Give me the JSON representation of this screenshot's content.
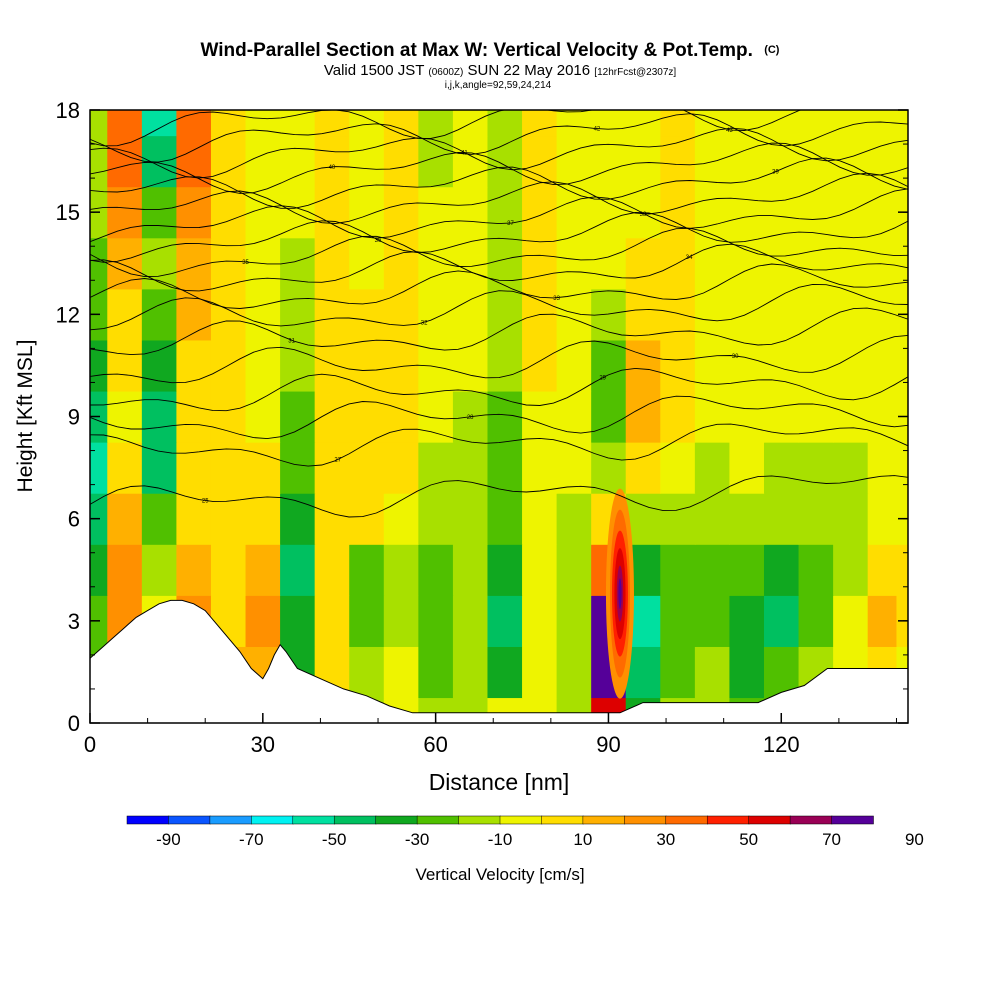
{
  "title": {
    "main": "Wind-Parallel Section at Max W: Vertical Velocity & Pot.Temp.",
    "main_unit": "(C)",
    "valid_prefix": "Valid 1500 JST",
    "valid_z": "(0600Z)",
    "valid_date": "SUN 22 May 2016",
    "valid_fcst": "[12hrFcst@2307z]",
    "indices": "i,j,k,angle=92,59,24,214"
  },
  "colorbar": {
    "label": "Vertical Velocity [cm/s]",
    "tick_labels": [
      "-90",
      "-70",
      "-50",
      "-30",
      "-10",
      "10",
      "30",
      "50",
      "70",
      "90"
    ],
    "colors": [
      "#0000ff",
      "#0a55ff",
      "#1a9cff",
      "#00f2f2",
      "#00e0a0",
      "#00c060",
      "#10a820",
      "#50c000",
      "#a8e000",
      "#eef400",
      "#ffdd00",
      "#ffb000",
      "#ff9000",
      "#ff6a00",
      "#ff2000",
      "#dd0000",
      "#990055",
      "#550099"
    ]
  },
  "chart_data": {
    "type": "heatmap",
    "title": "Wind-Parallel Section at Max W: Vertical Velocity & Pot.Temp. (C)",
    "xlabel": "Distance [nm]",
    "ylabel": "Height [Kft MSL]",
    "xlim": [
      0,
      142
    ],
    "ylim": [
      0,
      18
    ],
    "x_ticks": [
      0,
      30,
      60,
      90,
      120
    ],
    "y_ticks": [
      0,
      3,
      6,
      9,
      12,
      15,
      18
    ],
    "cell_values_cm_s": {
      "x": [
        0,
        6,
        12,
        18,
        24,
        30,
        36,
        42,
        48,
        54,
        60,
        66,
        72,
        78,
        84,
        90,
        96,
        102,
        108,
        114,
        120,
        126,
        132,
        138,
        142
      ],
      "y": [
        0,
        1.5,
        3,
        4.5,
        6,
        7.5,
        9,
        10.5,
        12,
        13.5,
        15,
        16.5,
        18
      ],
      "w": [
        [
          -10,
          10,
          20,
          30,
          10,
          -10,
          10,
          -10,
          -10,
          0,
          -10,
          -10,
          0,
          0,
          -10,
          60,
          -30,
          -10,
          -10,
          -20,
          -20,
          -10,
          0,
          0,
          0
        ],
        [
          -20,
          30,
          10,
          40,
          20,
          20,
          -30,
          10,
          -10,
          0,
          -20,
          -10,
          -30,
          0,
          -10,
          90,
          -40,
          -20,
          -10,
          -30,
          -20,
          -10,
          0,
          10,
          0
        ],
        [
          -20,
          30,
          0,
          30,
          10,
          30,
          -30,
          10,
          -20,
          -10,
          -20,
          -10,
          -40,
          0,
          -10,
          80,
          -50,
          -20,
          -20,
          -30,
          -40,
          -20,
          0,
          20,
          10
        ],
        [
          -30,
          30,
          -10,
          20,
          10,
          20,
          -40,
          10,
          -20,
          -10,
          -20,
          -10,
          -30,
          0,
          -10,
          40,
          -30,
          -20,
          -20,
          -20,
          -30,
          -20,
          -10,
          10,
          10
        ],
        [
          -40,
          20,
          -20,
          10,
          10,
          10,
          -30,
          10,
          10,
          0,
          -10,
          -10,
          -20,
          0,
          -10,
          10,
          -10,
          -10,
          -10,
          -10,
          -10,
          -10,
          -10,
          0,
          0
        ],
        [
          -50,
          10,
          -40,
          10,
          10,
          10,
          -20,
          10,
          10,
          10,
          -10,
          -10,
          -20,
          0,
          0,
          -10,
          10,
          0,
          -10,
          0,
          -10,
          -10,
          -10,
          0,
          0
        ],
        [
          -40,
          0,
          -40,
          10,
          10,
          0,
          -20,
          10,
          10,
          10,
          0,
          -10,
          -20,
          0,
          0,
          -20,
          20,
          10,
          0,
          0,
          0,
          0,
          0,
          0,
          0
        ],
        [
          -30,
          10,
          -30,
          10,
          10,
          0,
          -10,
          10,
          10,
          10,
          0,
          0,
          -10,
          10,
          0,
          -20,
          20,
          10,
          0,
          0,
          0,
          0,
          0,
          0,
          0
        ],
        [
          -20,
          10,
          -20,
          20,
          10,
          0,
          -10,
          10,
          10,
          10,
          0,
          0,
          -10,
          10,
          0,
          -10,
          10,
          10,
          0,
          0,
          0,
          0,
          0,
          0,
          0
        ],
        [
          -20,
          20,
          -10,
          20,
          10,
          0,
          -10,
          10,
          0,
          10,
          0,
          0,
          -10,
          10,
          0,
          0,
          10,
          10,
          0,
          0,
          0,
          0,
          0,
          0,
          0
        ],
        [
          -10,
          30,
          -20,
          30,
          10,
          0,
          0,
          10,
          0,
          10,
          0,
          0,
          -10,
          10,
          0,
          0,
          0,
          10,
          0,
          0,
          0,
          0,
          0,
          0,
          0
        ],
        [
          -10,
          40,
          -40,
          40,
          10,
          0,
          0,
          10,
          0,
          10,
          -10,
          0,
          -10,
          10,
          0,
          0,
          0,
          10,
          0,
          0,
          0,
          0,
          0,
          0,
          0
        ],
        [
          -10,
          40,
          -50,
          40,
          10,
          0,
          0,
          10,
          0,
          10,
          -10,
          0,
          -10,
          10,
          0,
          0,
          0,
          10,
          0,
          0,
          0,
          0,
          0,
          0,
          0
        ]
      ]
    },
    "max_w_location": {
      "x_nm": 92,
      "height_kft": 3.8,
      "w_cm_s": 90
    },
    "terrain_kft": {
      "x": [
        0,
        2,
        4,
        6,
        8,
        10,
        12,
        14,
        16,
        18,
        20,
        22,
        24,
        26,
        28,
        30,
        31,
        32,
        33,
        34,
        36,
        40,
        44,
        48,
        52,
        56,
        60,
        64,
        68,
        72,
        76,
        80,
        84,
        88,
        92,
        96,
        100,
        104,
        108,
        112,
        116,
        120,
        124,
        128,
        132,
        136,
        140,
        142
      ],
      "h": [
        1.9,
        2.2,
        2.5,
        2.8,
        3.1,
        3.3,
        3.5,
        3.6,
        3.6,
        3.5,
        3.3,
        2.9,
        2.5,
        2.1,
        1.6,
        1.3,
        1.6,
        2.0,
        2.3,
        2.1,
        1.6,
        1.3,
        1.0,
        0.8,
        0.5,
        0.3,
        0.3,
        0.3,
        0.3,
        0.3,
        0.3,
        0.3,
        0.3,
        0.3,
        0.3,
        0.6,
        0.6,
        0.6,
        0.6,
        0.6,
        0.6,
        0.9,
        1.1,
        1.6,
        1.6,
        1.6,
        1.6,
        1.6
      ]
    },
    "theta_contours": [
      {
        "level": 25,
        "base_kft": 6.7,
        "label": "25"
      },
      {
        "level": 27,
        "base_kft": 8.2,
        "label": "27"
      },
      {
        "level": 28,
        "base_kft": 9.0,
        "label": "28"
      },
      {
        "level": 29,
        "base_kft": 9.8,
        "label": "29"
      },
      {
        "level": 30,
        "base_kft": 10.6,
        "label": "30"
      },
      {
        "level": 31,
        "base_kft": 11.4,
        "label": "31"
      },
      {
        "level": 32,
        "base_kft": 12.1,
        "label": "32"
      },
      {
        "level": 33,
        "base_kft": 12.7,
        "label": "33"
      },
      {
        "level": 34,
        "base_kft": 13.3,
        "label": "34"
      },
      {
        "level": 35,
        "base_kft": 13.8,
        "label": "35"
      },
      {
        "level": 36,
        "base_kft": 14.3,
        "label": "36"
      },
      {
        "level": 37,
        "base_kft": 14.8,
        "label": "37"
      },
      {
        "level": 38,
        "base_kft": 15.3,
        "label": "38"
      },
      {
        "level": 39,
        "base_kft": 15.8,
        "label": "39"
      },
      {
        "level": 40,
        "base_kft": 16.3,
        "label": "40"
      },
      {
        "level": 41,
        "base_kft": 16.8,
        "label": "41"
      },
      {
        "level": 42,
        "base_kft": 17.3,
        "label": "42"
      },
      {
        "level": 43,
        "base_kft": 17.8,
        "label": "43"
      }
    ]
  }
}
